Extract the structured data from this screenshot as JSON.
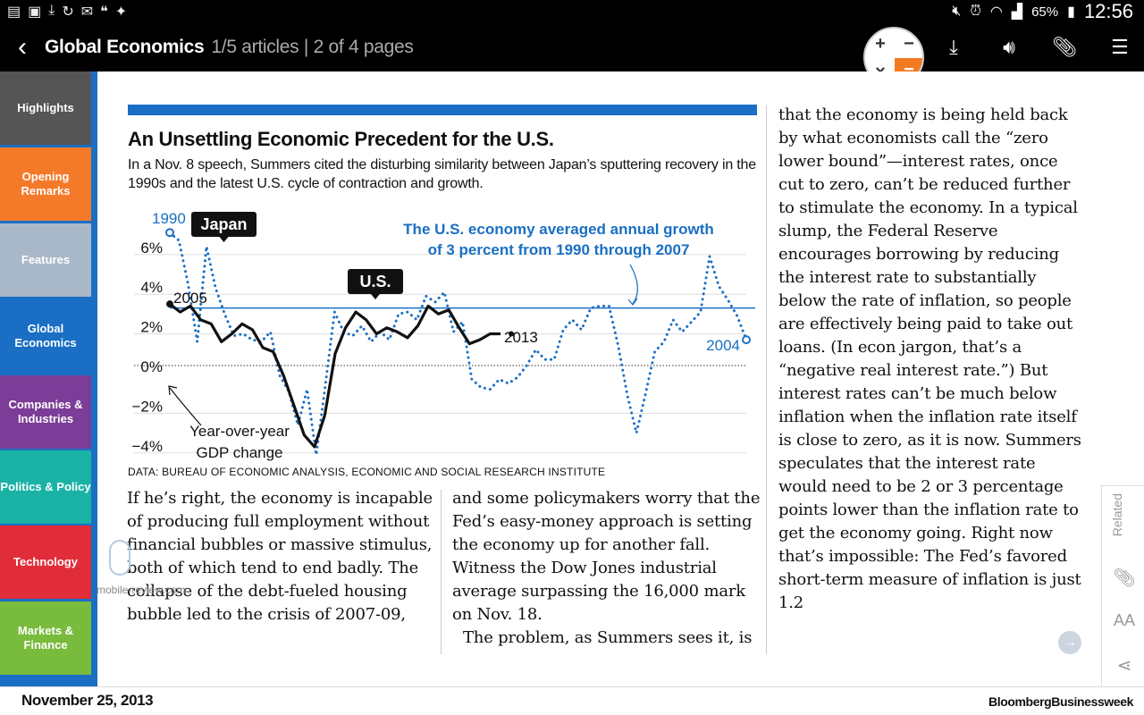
{
  "status_bar": {
    "battery": "65%",
    "time": "12:56",
    "left_icons": [
      "notes-icon",
      "gallery-icon",
      "download-icon",
      "sync-icon",
      "gmail-icon",
      "hangouts-icon",
      "twitter-icon"
    ],
    "right_icons": [
      "mute-icon",
      "alarm-icon",
      "wifi-icon",
      "signal-icon",
      "battery-icon"
    ]
  },
  "app_bar": {
    "title": "Global Economics",
    "subtitle": "1/5 articles | 2 of 4 pages",
    "calc_keys": [
      "+",
      "−",
      "×",
      "="
    ],
    "actions": [
      "download-icon",
      "audio-icon",
      "attach-icon",
      "sections-icon"
    ]
  },
  "sidebar": {
    "items": [
      {
        "label": "Highlights",
        "color": "#555555"
      },
      {
        "label": "Opening Remarks",
        "color": "#f47a2a"
      },
      {
        "label": "Features",
        "color": "#a9b8c8"
      },
      {
        "label": "Global Economics",
        "color": "#1a6fc4"
      },
      {
        "label": "Companies & Industries",
        "color": "#7b3d97"
      },
      {
        "label": "Politics & Policy",
        "color": "#1bb2a6"
      },
      {
        "label": "Technology",
        "color": "#e12d39"
      },
      {
        "label": "Markets & Finance",
        "color": "#79bb3c"
      }
    ]
  },
  "article": {
    "chart_title": "An Unsettling Economic Precedent for the U.S.",
    "chart_subtitle": "In a Nov. 8 speech, Summers cited the disturbing similarity between Japan’s sputtering recovery in the 1990s and the latest U.S. cycle of contraction and growth.",
    "source": "DATA: BUREAU OF ECONOMIC ANALYSIS, ECONOMIC AND SOCIAL RESEARCH INSTITUTE",
    "col1": "If he’s right, the economy is incapable of producing full employment without financial bubbles or massive stimulus, both of which tend to end badly. The collapse of the debt-fueled housing bubble led to the crisis of 2007-09,",
    "col2": "and some policymakers worry that the Fed’s easy-money approach is setting the economy up for another fall. Witness the Dow Jones industrial average surpassing the 16,000 mark on Nov. 18.",
    "col2b": "The problem, as Summers sees it, is",
    "col3": "that the economy is being held back by what economists call the “zero lower bound”—interest rates, once cut to zero, can’t be reduced further to stimulate the economy. In a typical slump, the Federal Reserve encourages borrowing by reducing the interest rate to substantially below the rate of inflation, so people are effectively being paid to take out loans. (In econ jargon, that’s a “negative real interest rate.”) But interest rates can’t be much below inflation when the inflation rate itself is close to zero, as it is now. Summers speculates that the interest rate would need to be 2 or 3 percentage points lower than the inflation rate to get the economy going. Right now that’s impossible: The Fed’s favored short-term measure of inflation is just 1.2"
  },
  "chart_data": {
    "type": "line",
    "title": "An Unsettling Economic Precedent for the U.S.",
    "ylabel": "Year-over-year GDP change",
    "yticks": [
      "6%",
      "4%",
      "2%",
      "0%",
      "−2%",
      "−4%"
    ],
    "ylim": [
      -5,
      7
    ],
    "annotation": "The U.S. economy averaged annual growth of 3 percent from 1990 through 2007",
    "reference_line": 2.9,
    "colors": {
      "japan": "#1a6fc4",
      "us": "#111111",
      "accent": "#1a6fc4"
    },
    "series": [
      {
        "name": "Japan",
        "start_label": "1990",
        "end_label": "2004",
        "style": "dotted",
        "values": [
          6.7,
          6.3,
          4.1,
          1.2,
          6.0,
          3.9,
          2.6,
          1.5,
          1.6,
          1.3,
          1.2,
          1.7,
          -0.5,
          -1.3,
          -3.0,
          -1.2,
          -4.5,
          -1.0,
          2.7,
          1.7,
          1.5,
          2.0,
          1.2,
          1.7,
          1.3,
          2.6,
          2.7,
          2.3,
          3.5,
          3.2,
          3.7,
          1.7,
          2.2,
          -0.7,
          -1.1,
          -1.2,
          -0.7,
          -0.9,
          -0.6,
          0.0,
          0.8,
          0.3,
          0.3,
          1.8,
          2.3,
          1.8,
          2.9,
          3.0,
          3.0,
          1.0,
          -1.5,
          -3.4,
          -1.4,
          0.7,
          1.2,
          2.3,
          1.7,
          2.2,
          2.7,
          5.5,
          4.0,
          3.3,
          2.5,
          1.3
        ]
      },
      {
        "name": "U.S.",
        "start_label": "2005",
        "end_label": "2013",
        "style": "solid",
        "values": [
          3.1,
          2.7,
          3.0,
          2.3,
          2.1,
          1.2,
          1.6,
          2.1,
          1.8,
          0.9,
          0.7,
          -0.5,
          -2.0,
          -3.5,
          -4.1,
          -2.5,
          0.6,
          1.9,
          2.7,
          2.3,
          1.6,
          1.9,
          1.7,
          1.4,
          2.0,
          3.0,
          2.6,
          2.8,
          1.9,
          1.1,
          1.3,
          1.6,
          1.6
        ]
      }
    ]
  },
  "bottom_bar": {
    "date": "November 25, 2013",
    "brand": "BloombergBusinessweek"
  },
  "side_tools": {
    "related": "Related",
    "font_size": "AA"
  },
  "watermark": {
    "text": "mobile-review.com"
  }
}
